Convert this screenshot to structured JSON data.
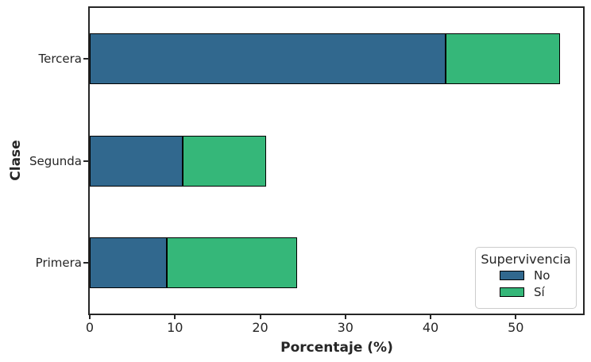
{
  "chart_data": {
    "type": "bar",
    "orientation": "horizontal",
    "stacked": true,
    "title": "",
    "xlabel": "Porcentaje (%)",
    "ylabel": "Clase",
    "categories": [
      "Tercera",
      "Segunda",
      "Primera"
    ],
    "series": [
      {
        "name": "No",
        "color": "#31688e",
        "values": [
          41.8,
          10.9,
          9.0
        ]
      },
      {
        "name": "Sí",
        "color": "#35b779",
        "values": [
          13.4,
          9.8,
          15.3
        ]
      }
    ],
    "xticks": [
      "0",
      "10",
      "20",
      "30",
      "40",
      "50"
    ],
    "xtick_values": [
      0,
      10,
      20,
      30,
      40,
      50
    ],
    "xlim": [
      0,
      57.9
    ],
    "grid": false,
    "legend": {
      "title": "Supervivencia",
      "position": "lower right"
    },
    "styles": {
      "bar_edge_color": "#000000",
      "spine_color": "#262626",
      "text_color": "#262626",
      "legend_border_color": "#cccccc",
      "background": "#ffffff"
    }
  }
}
